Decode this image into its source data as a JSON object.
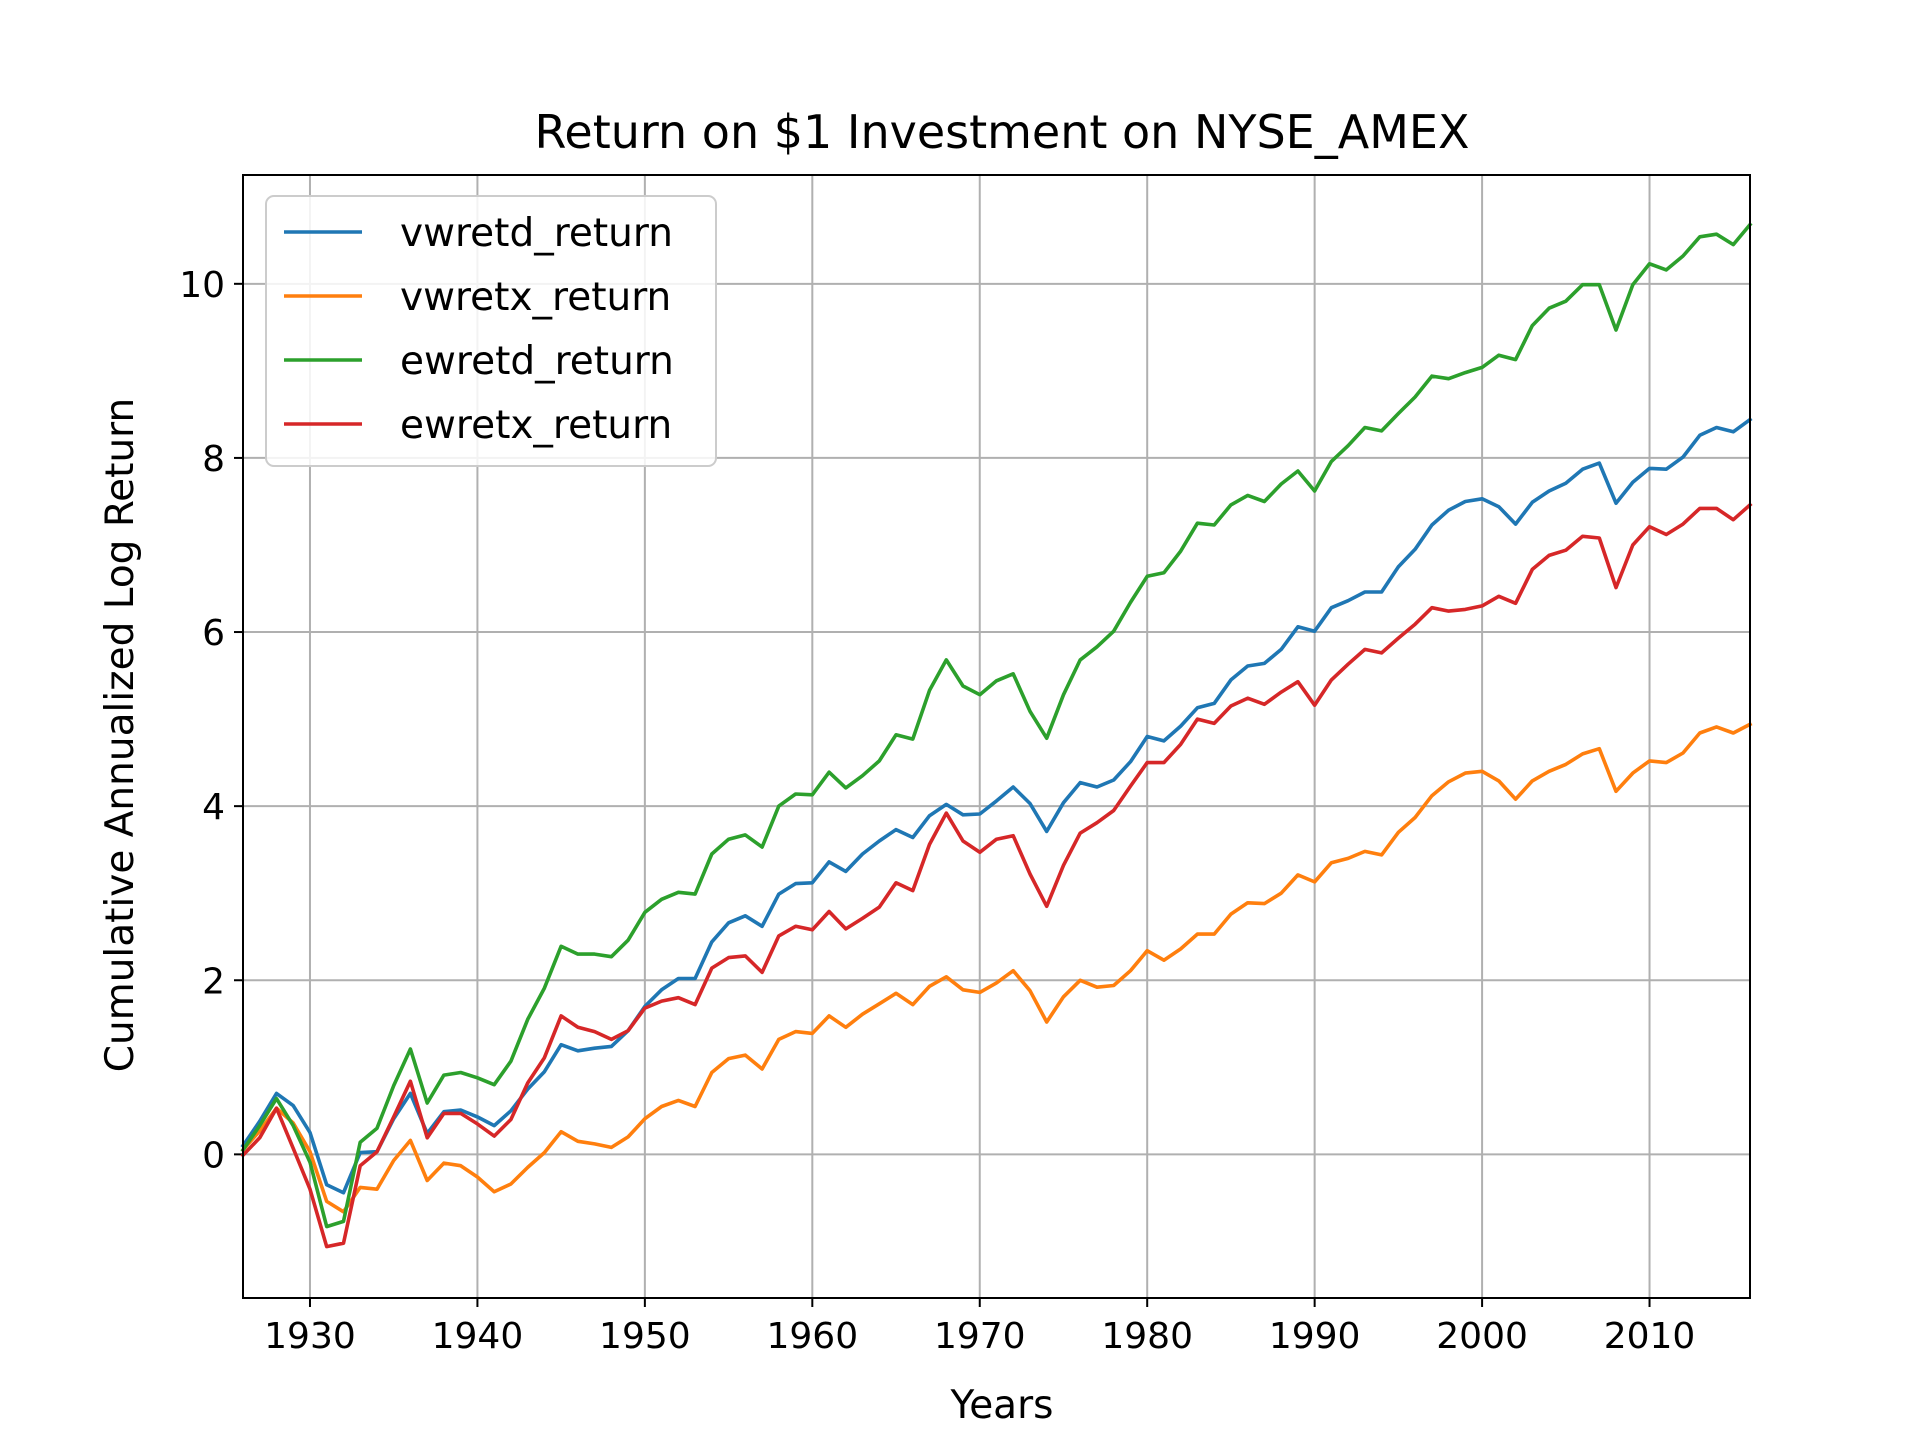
{
  "chart_data": {
    "type": "line",
    "title": "Return on $1 Investment on NYSE_AMEX",
    "xlabel": "Years",
    "ylabel": "Cumulative Annualized Log Return",
    "xlim": [
      1926,
      2016
    ],
    "ylim": [
      -1.65,
      11.25
    ],
    "xticks": [
      1930,
      1940,
      1950,
      1960,
      1970,
      1980,
      1990,
      2000,
      2010
    ],
    "yticks": [
      0,
      2,
      4,
      6,
      8,
      10
    ],
    "grid": true,
    "legend_position": "upper left",
    "x": [
      1926,
      1927,
      1928,
      1929,
      1930,
      1931,
      1932,
      1933,
      1934,
      1935,
      1936,
      1937,
      1938,
      1939,
      1940,
      1941,
      1942,
      1943,
      1944,
      1945,
      1946,
      1947,
      1948,
      1949,
      1950,
      1951,
      1952,
      1953,
      1954,
      1955,
      1956,
      1957,
      1958,
      1959,
      1960,
      1961,
      1962,
      1963,
      1964,
      1965,
      1966,
      1967,
      1968,
      1969,
      1970,
      1971,
      1972,
      1973,
      1974,
      1975,
      1976,
      1977,
      1978,
      1979,
      1980,
      1981,
      1982,
      1983,
      1984,
      1985,
      1986,
      1987,
      1988,
      1989,
      1990,
      1991,
      1992,
      1993,
      1994,
      1995,
      1996,
      1997,
      1998,
      1999,
      2000,
      2001,
      2002,
      2003,
      2004,
      2005,
      2006,
      2007,
      2008,
      2009,
      2010,
      2011,
      2012,
      2013,
      2014,
      2015,
      2016
    ],
    "series": [
      {
        "name": "vwretd_return",
        "color": "#1f77b4",
        "values": [
          0.1,
          0.38,
          0.7,
          0.56,
          0.25,
          -0.35,
          -0.44,
          0.02,
          0.03,
          0.41,
          0.7,
          0.24,
          0.49,
          0.51,
          0.43,
          0.33,
          0.5,
          0.75,
          0.95,
          1.26,
          1.19,
          1.22,
          1.24,
          1.42,
          1.7,
          1.89,
          2.02,
          2.02,
          2.44,
          2.66,
          2.74,
          2.62,
          2.99,
          3.11,
          3.12,
          3.36,
          3.25,
          3.45,
          3.6,
          3.73,
          3.64,
          3.89,
          4.02,
          3.9,
          3.91,
          4.06,
          4.22,
          4.03,
          3.71,
          4.04,
          4.27,
          4.22,
          4.3,
          4.51,
          4.8,
          4.75,
          4.92,
          5.13,
          5.18,
          5.45,
          5.61,
          5.64,
          5.8,
          6.06,
          6.01,
          6.28,
          6.36,
          6.46,
          6.46,
          6.75,
          6.95,
          7.23,
          7.4,
          7.5,
          7.53,
          7.44,
          7.24,
          7.49,
          7.62,
          7.71,
          7.87,
          7.94,
          7.48,
          7.72,
          7.88,
          7.87,
          8.01,
          8.26,
          8.35,
          8.3,
          8.44
        ]
      },
      {
        "name": "vwretx_return",
        "color": "#ff7f0e",
        "values": [
          0.05,
          0.27,
          0.53,
          0.36,
          0.03,
          -0.54,
          -0.66,
          -0.38,
          -0.4,
          -0.07,
          0.16,
          -0.3,
          -0.1,
          -0.13,
          -0.26,
          -0.43,
          -0.34,
          -0.15,
          0.02,
          0.26,
          0.15,
          0.12,
          0.08,
          0.2,
          0.41,
          0.55,
          0.62,
          0.55,
          0.94,
          1.1,
          1.14,
          0.98,
          1.32,
          1.41,
          1.39,
          1.59,
          1.46,
          1.61,
          1.73,
          1.85,
          1.72,
          1.93,
          2.04,
          1.89,
          1.86,
          1.97,
          2.11,
          1.88,
          1.52,
          1.81,
          2.0,
          1.92,
          1.94,
          2.11,
          2.34,
          2.23,
          2.36,
          2.53,
          2.53,
          2.76,
          2.89,
          2.88,
          3.0,
          3.21,
          3.13,
          3.35,
          3.4,
          3.48,
          3.44,
          3.7,
          3.87,
          4.12,
          4.28,
          4.38,
          4.4,
          4.29,
          4.08,
          4.29,
          4.4,
          4.48,
          4.6,
          4.66,
          4.17,
          4.38,
          4.52,
          4.5,
          4.61,
          4.84,
          4.91,
          4.84,
          4.94
        ]
      },
      {
        "name": "ewretd_return",
        "color": "#2ca02c",
        "values": [
          0.05,
          0.33,
          0.64,
          0.33,
          -0.09,
          -0.83,
          -0.77,
          0.14,
          0.3,
          0.79,
          1.21,
          0.59,
          0.91,
          0.94,
          0.88,
          0.8,
          1.07,
          1.55,
          1.91,
          2.39,
          2.3,
          2.3,
          2.27,
          2.46,
          2.78,
          2.93,
          3.01,
          2.99,
          3.45,
          3.62,
          3.67,
          3.53,
          4.0,
          4.14,
          4.13,
          4.39,
          4.21,
          4.35,
          4.52,
          4.82,
          4.77,
          5.33,
          5.68,
          5.38,
          5.28,
          5.44,
          5.52,
          5.09,
          4.78,
          5.28,
          5.68,
          5.83,
          6.01,
          6.34,
          6.64,
          6.68,
          6.93,
          7.25,
          7.23,
          7.46,
          7.57,
          7.5,
          7.7,
          7.85,
          7.62,
          7.96,
          8.14,
          8.35,
          8.31,
          8.51,
          8.7,
          8.94,
          8.91,
          8.98,
          9.04,
          9.18,
          9.13,
          9.52,
          9.72,
          9.8,
          9.99,
          9.99,
          9.47,
          9.99,
          10.23,
          10.16,
          10.32,
          10.54,
          10.57,
          10.45,
          10.68
        ]
      },
      {
        "name": "ewretx_return",
        "color": "#d62728",
        "values": [
          -0.01,
          0.19,
          0.53,
          0.07,
          -0.4,
          -1.06,
          -1.02,
          -0.13,
          0.03,
          0.43,
          0.84,
          0.19,
          0.47,
          0.47,
          0.35,
          0.21,
          0.4,
          0.82,
          1.11,
          1.59,
          1.46,
          1.41,
          1.32,
          1.42,
          1.68,
          1.76,
          1.8,
          1.72,
          2.14,
          2.26,
          2.28,
          2.09,
          2.51,
          2.62,
          2.58,
          2.79,
          2.59,
          2.71,
          2.84,
          3.12,
          3.03,
          3.56,
          3.92,
          3.6,
          3.47,
          3.62,
          3.66,
          3.22,
          2.85,
          3.32,
          3.69,
          3.81,
          3.95,
          4.23,
          4.5,
          4.5,
          4.71,
          5.0,
          4.95,
          5.15,
          5.24,
          5.17,
          5.31,
          5.43,
          5.16,
          5.45,
          5.63,
          5.8,
          5.76,
          5.93,
          6.09,
          6.28,
          6.24,
          6.26,
          6.3,
          6.41,
          6.33,
          6.72,
          6.88,
          6.94,
          7.1,
          7.08,
          6.51,
          7.0,
          7.21,
          7.12,
          7.24,
          7.42,
          7.42,
          7.29,
          7.46
        ]
      }
    ]
  }
}
